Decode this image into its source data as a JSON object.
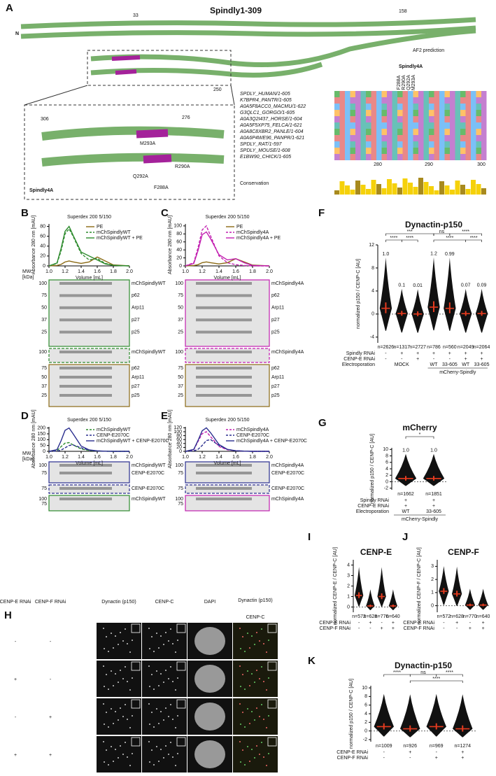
{
  "figure": {
    "letters": [
      "A",
      "B",
      "C",
      "D",
      "E",
      "F",
      "G",
      "H",
      "I",
      "J",
      "K"
    ],
    "panel_a": {
      "title": "Spindly1-309",
      "n_term": "N",
      "residues": [
        "33",
        "158",
        "250",
        "306",
        "276"
      ],
      "af2": "AF2 prediction",
      "mutations": [
        "M293A",
        "R290A",
        "Q292A",
        "F288A"
      ],
      "inset_label": "Spindly4A",
      "alignment": {
        "header": "Spindly4A",
        "mutations": [
          "F288A",
          "R290A",
          "Q292A",
          "M293A"
        ],
        "species": [
          "SPDLY_HUMAN/1-605",
          "K7BPR4_PANTR/1-605",
          "A0A5F8ACC0_MACMU/1-622",
          "G3QLC1_GORGO/1-605",
          "A0A3Q2I437_HORSE/1-604",
          "A0A5F5XP75_FELCA/1-621",
          "A0A8C8XBR2_PANLE/1-604",
          "A0A6P4WE96_PANPR/1-621",
          "SPDLY_RAT/1-597",
          "SPDLY_MOUSE/1-608",
          "E1BW90_CHICK/1-605"
        ],
        "axis": [
          "280",
          "290",
          "300"
        ],
        "conservation_label": "Conservation"
      }
    },
    "gels": [
      {
        "mw": "MW",
        "unit": "[kDa]",
        "blocks": [
          {
            "ticks": [
              "100",
              "75",
              "50",
              "37",
              "25"
            ],
            "labels": [
              "mChSpindlyWT",
              "p62",
              "Arp11",
              "p27",
              "p25"
            ]
          },
          {
            "ticks": [
              "100"
            ],
            "labels": [
              "mChSpindlyWT"
            ]
          },
          {
            "ticks": [
              "75",
              "50",
              "37",
              "25"
            ],
            "labels": [
              "p62",
              "Arp11",
              "p27",
              "p25"
            ]
          }
        ]
      },
      {
        "blocks": [
          {
            "ticks": [
              "100",
              "75",
              "50",
              "37",
              "25"
            ],
            "labels": [
              "mChSpindly4A",
              "p62",
              "Arp11",
              "p27",
              "p25"
            ]
          },
          {
            "ticks": [
              "100"
            ],
            "labels": [
              "mChSpindly4A"
            ]
          },
          {
            "ticks": [
              "75",
              "50",
              "37",
              "25"
            ],
            "labels": [
              "p62",
              "Arp11",
              "p27",
              "p25"
            ]
          }
        ]
      },
      {
        "mw": "MW",
        "unit": "[kDa]",
        "blocks": [
          {
            "ticks": [
              "100",
              "75"
            ],
            "labels": [
              "mChSpindlyWT",
              "CENP-E2070C"
            ]
          },
          {
            "ticks": [
              "75"
            ],
            "labels": [
              "CENP-E2070C"
            ]
          },
          {
            "ticks": [
              "100",
              "75"
            ],
            "labels": [
              "mChSpindlyWT"
            ]
          }
        ]
      },
      {
        "blocks": [
          {
            "ticks": [
              "100",
              "75"
            ],
            "labels": [
              "mChSpindly4A",
              "CENP-E2070C"
            ]
          },
          {
            "ticks": [
              "75"
            ],
            "labels": [
              "CENP-E2070C"
            ]
          },
          {
            "ticks": [
              "100",
              "75"
            ],
            "labels": [
              "mChSpindly4A"
            ]
          }
        ]
      }
    ],
    "panel_h": {
      "row_headers": [
        "CENP-E RNAi",
        "CENP-F RNAi"
      ],
      "columns": [
        "Dynactin (p150)",
        "CENP-C",
        "DAPI",
        "Dynactin (p150)",
        "CENP-C"
      ],
      "rows": [
        [
          "-",
          "-"
        ],
        [
          "+",
          "-"
        ],
        [
          "-",
          "+"
        ],
        [
          "+",
          "+"
        ]
      ]
    }
  },
  "chart_data": [
    {
      "type": "line",
      "title": "Superdex 200 5/150",
      "ylabel": "Absorbance 280 nm [mAU]",
      "xlabel": "Volume [mL]",
      "x": [
        1.0,
        1.1,
        1.15,
        1.2,
        1.25,
        1.3,
        1.4,
        1.5,
        1.6,
        1.7,
        1.8,
        2.0
      ],
      "series": [
        {
          "name": "PE",
          "color": "#8b6a14",
          "style": "solid",
          "values": [
            0,
            1,
            3,
            8,
            10,
            8,
            5,
            8,
            18,
            10,
            2,
            0
          ]
        },
        {
          "name": "mChSpindlyWT",
          "color": "#2e8b2e",
          "style": "dashed",
          "values": [
            0,
            5,
            30,
            65,
            75,
            60,
            25,
            12,
            15,
            5,
            1,
            0
          ]
        },
        {
          "name": "mChSpindlyWT + PE",
          "color": "#2e8b2e",
          "style": "solid",
          "values": [
            0,
            6,
            35,
            70,
            80,
            62,
            28,
            20,
            12,
            4,
            1,
            0
          ]
        }
      ],
      "xlim": [
        1.0,
        2.0
      ],
      "xticks": [
        {
          "value": 1.0,
          "label": "1.0"
        },
        1.2,
        1.4,
        1.6,
        1.8,
        {
          "value": 2.0,
          "label": "2.0"
        }
      ],
      "ylim": [
        0,
        85
      ],
      "yticks": [
        0,
        20,
        40,
        60,
        80
      ]
    },
    {
      "type": "line",
      "title": "Superdex 200 5/150",
      "ylabel": "Absorbance 280 nm [mAU]",
      "xlabel": "Volume [mL]",
      "x": [
        1.0,
        1.1,
        1.15,
        1.2,
        1.25,
        1.3,
        1.4,
        1.5,
        1.6,
        1.7,
        1.8,
        2.0
      ],
      "series": [
        {
          "name": "PE",
          "color": "#8b6a14",
          "style": "solid",
          "values": [
            0,
            1,
            3,
            8,
            10,
            8,
            5,
            8,
            18,
            10,
            2,
            0
          ]
        },
        {
          "name": "mChSpindly4A",
          "color": "#c21fb0",
          "style": "dashed",
          "values": [
            0,
            8,
            45,
            90,
            100,
            75,
            25,
            8,
            3,
            1,
            0,
            0
          ]
        },
        {
          "name": "mChSpindly4A + PE",
          "color": "#c21fb0",
          "style": "solid",
          "values": [
            0,
            6,
            38,
            78,
            85,
            68,
            28,
            15,
            18,
            8,
            1,
            0
          ]
        }
      ],
      "xlim": [
        1.0,
        2.0
      ],
      "xticks": [
        {
          "value": 1.0,
          "label": "1.0"
        },
        1.2,
        1.4,
        1.6,
        1.8,
        {
          "value": 2.0,
          "label": "2.0"
        }
      ],
      "ylim": [
        0,
        105
      ],
      "yticks": [
        0,
        20,
        40,
        60,
        80,
        100
      ]
    },
    {
      "type": "line",
      "title": "Superdex 200 5/150",
      "ylabel": "Absorbance 280 nm [mAU]",
      "xlabel": "Volume [mL]",
      "x": [
        1.0,
        1.1,
        1.15,
        1.2,
        1.25,
        1.3,
        1.4,
        1.5,
        1.6,
        1.7,
        1.8,
        2.0
      ],
      "series": [
        {
          "name": "mChSpindlyWT",
          "color": "#2e8b2e",
          "style": "dashed",
          "values": [
            0,
            5,
            40,
            70,
            75,
            55,
            20,
            8,
            3,
            1,
            0,
            0
          ]
        },
        {
          "name": "CENP-E2070C",
          "color": "#2b2f8f",
          "style": "dashed",
          "values": [
            0,
            2,
            10,
            30,
            50,
            55,
            30,
            10,
            3,
            1,
            0,
            0
          ]
        },
        {
          "name": "mChSpindlyWT + CENP-E2070C",
          "color": "#2b2f8f",
          "style": "solid",
          "values": [
            0,
            15,
            90,
            180,
            200,
            150,
            45,
            12,
            4,
            1,
            0,
            0
          ]
        }
      ],
      "xlim": [
        1.0,
        2.0
      ],
      "xticks": [
        {
          "value": 1.0,
          "label": "1.0"
        },
        1.2,
        1.4,
        1.6,
        1.8,
        {
          "value": 2.0,
          "label": "2.0"
        }
      ],
      "ylim": [
        0,
        210
      ],
      "yticks": [
        0,
        50,
        100,
        150,
        200
      ]
    },
    {
      "type": "line",
      "title": "Superdex 200 5/150",
      "ylabel": "Absorbance 280 nm [mAU]",
      "xlabel": "Volume [mL]",
      "x": [
        1.0,
        1.1,
        1.15,
        1.2,
        1.25,
        1.3,
        1.4,
        1.5,
        1.6,
        1.7,
        1.8,
        2.0
      ],
      "series": [
        {
          "name": "mChSpindly4A",
          "color": "#c21fb0",
          "style": "dashed",
          "values": [
            0,
            8,
            50,
            90,
            100,
            75,
            25,
            8,
            3,
            1,
            0,
            0
          ]
        },
        {
          "name": "CENP-E2070C",
          "color": "#2b2f8f",
          "style": "dashed",
          "values": [
            0,
            2,
            10,
            30,
            55,
            60,
            30,
            10,
            3,
            1,
            0,
            0
          ]
        },
        {
          "name": "mChSpindly4A + CENP-E2070C",
          "color": "#2b2f8f",
          "style": "solid",
          "values": [
            0,
            10,
            55,
            105,
            120,
            95,
            35,
            10,
            3,
            1,
            0,
            0
          ]
        }
      ],
      "xlim": [
        1.0,
        2.0
      ],
      "xticks": [
        {
          "value": 1.0,
          "label": "1.0"
        },
        1.2,
        1.4,
        1.6,
        1.8,
        {
          "value": 2.0,
          "label": "2.0"
        }
      ],
      "ylim": [
        0,
        125
      ],
      "yticks": [
        0,
        20,
        40,
        60,
        80,
        100,
        120
      ]
    },
    {
      "type": "violin",
      "title": "Dynactin-p150",
      "ylabel": "normalized p150 / CENP-C [AU]",
      "categories": [
        "n=2626",
        "n=1317",
        "n=2727",
        "n=786",
        "n=560",
        "n=2049",
        "n=2064"
      ],
      "values": [
        1.0,
        0.1,
        0.01,
        1.2,
        0.99,
        0.07,
        0.09
      ],
      "value_labels": [
        "1.0",
        "0.1",
        "0.01",
        "1.2",
        "0.99",
        "0.07",
        "0.09"
      ],
      "conditions": [
        {
          "label": "Spindly RNAi",
          "marks": [
            "-",
            "+",
            "+",
            "+",
            "+",
            "+",
            "+"
          ]
        },
        {
          "label": "CENP-E RNAi",
          "marks": [
            "-",
            "-",
            "+",
            "-",
            "-",
            "+",
            "+"
          ]
        }
      ],
      "electroporation": {
        "label": "Electroporation",
        "marks": [
          null,
          "MOCK",
          null,
          "WT",
          "33-605",
          "WT",
          "33-605"
        ],
        "sublabel": "mCherry-Spindly"
      },
      "significance": [
        "***",
        "ns",
        "****",
        "****",
        "****",
        "****",
        "****"
      ],
      "ylim": [
        -5,
        12
      ],
      "yticks": [
        -4,
        0,
        4,
        8,
        12
      ]
    },
    {
      "type": "violin",
      "title": "mCherry",
      "ylabel": "normalized p150 / CENP-C [AU]",
      "categories": [
        "n=1662",
        "n=1851"
      ],
      "values": [
        1.0,
        1.0
      ],
      "value_labels": [
        "1.0",
        "1.0"
      ],
      "conditions": [
        {
          "label": "Spindly RNAi",
          "marks": [
            "+",
            "+"
          ]
        },
        {
          "label": "CENP-E RNAi",
          "marks": [
            "+",
            "+"
          ]
        }
      ],
      "electroporation": {
        "label": "Electroporation",
        "marks": [
          "WT",
          "33-605"
        ],
        "sublabel": "mCherry-Spindly"
      },
      "significance": [
        "*"
      ],
      "ylim": [
        -2.5,
        10.5
      ],
      "yticks": [
        -2,
        0,
        2,
        4,
        6,
        8,
        10
      ]
    },
    {
      "type": "violin",
      "title": "CENP-E",
      "ylabel": "normalized CENP-E / CENP-C [AU]",
      "categories": [
        "n=572",
        "n=628",
        "n=770",
        "n=640"
      ],
      "values": [
        1.1,
        0.1,
        1.0,
        0.1
      ],
      "conditions": [
        {
          "label": "CENP-E RNAi",
          "marks": [
            "-",
            "+",
            "-",
            "+"
          ]
        },
        {
          "label": "CENP-F RNAi",
          "marks": [
            "-",
            "-",
            "+",
            "+"
          ]
        }
      ],
      "ylim": [
        -0.5,
        4.5
      ],
      "yticks": [
        0,
        1,
        2,
        3,
        4
      ]
    },
    {
      "type": "violin",
      "title": "CENP-F",
      "ylabel": "normalized CENP-F / CENP-C [AU]",
      "categories": [
        "n=572",
        "n=628",
        "n=770",
        "n=640"
      ],
      "values": [
        1.1,
        0.9,
        0.05,
        0.05
      ],
      "conditions": [
        {
          "label": "CENP-E RNAi",
          "marks": [
            "-",
            "+",
            "-",
            "+"
          ]
        },
        {
          "label": "CENP-F RNAi",
          "marks": [
            "-",
            "-",
            "+",
            "+"
          ]
        }
      ],
      "ylim": [
        -0.5,
        3.5
      ],
      "yticks": [
        0,
        1,
        2,
        3
      ]
    },
    {
      "type": "violin",
      "title": "Dynactin-p150",
      "ylabel": "normalized p150 / CENP-C [AU]",
      "categories": [
        "n=1009",
        "n=926",
        "n=969",
        "n=1274"
      ],
      "values": [
        1.0,
        0.5,
        1.0,
        0.5
      ],
      "conditions": [
        {
          "label": "CENP-E RNAi",
          "marks": [
            "-",
            "+",
            "-",
            "+"
          ]
        },
        {
          "label": "CENP-F RNAi",
          "marks": [
            "-",
            "-",
            "+",
            "+"
          ]
        }
      ],
      "significance": [
        "****",
        "ns",
        "****",
        "****"
      ],
      "ylim": [
        -2.5,
        10.5
      ],
      "yticks": [
        -2,
        0,
        2,
        4,
        6,
        8,
        10
      ]
    }
  ]
}
